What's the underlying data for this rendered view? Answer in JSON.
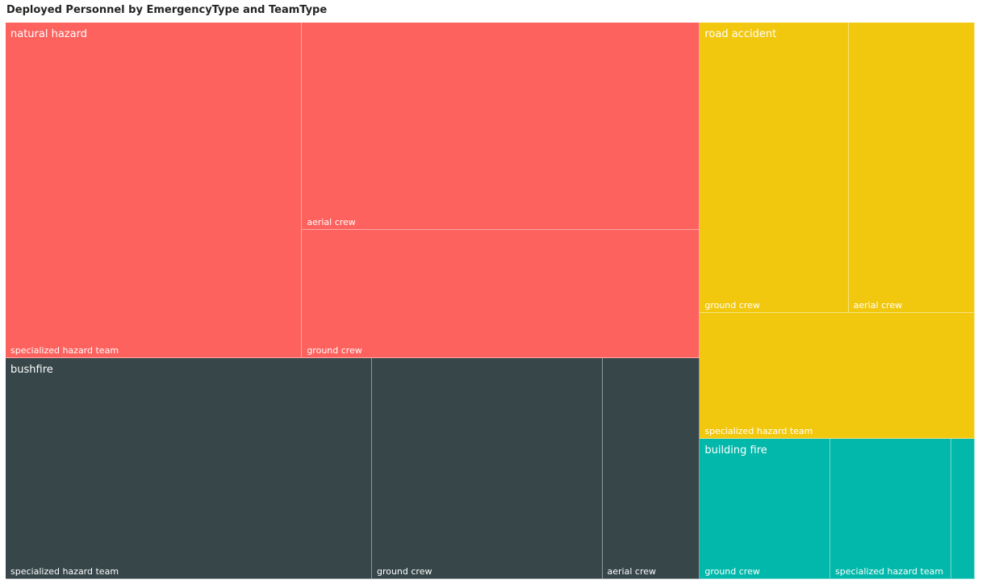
{
  "chart_data": {
    "type": "treemap",
    "title": "Deployed Personnel by EmergencyType and TeamType",
    "groups": [
      {
        "name": "natural hazard",
        "color": "#FD625E",
        "children": [
          {
            "name": "specialized hazard team",
            "value": 152
          },
          {
            "name": "aerial crew",
            "value": 126
          },
          {
            "name": "ground crew",
            "value": 78
          }
        ]
      },
      {
        "name": "bushfire",
        "color": "#374649",
        "children": [
          {
            "name": "specialized hazard team",
            "value": 124
          },
          {
            "name": "ground crew",
            "value": 78
          },
          {
            "name": "aerial crew",
            "value": 33
          }
        ]
      },
      {
        "name": "road accident",
        "color": "#F2C80F",
        "children": [
          {
            "name": "ground crew",
            "value": 66
          },
          {
            "name": "aerial crew",
            "value": 56
          },
          {
            "name": "specialized hazard team",
            "value": 53
          }
        ]
      },
      {
        "name": "building fire",
        "color": "#01B8AA",
        "children": [
          {
            "name": "ground crew",
            "value": 28
          },
          {
            "name": "specialized hazard team",
            "value": 26
          },
          {
            "name": "",
            "value": 5
          }
        ]
      }
    ]
  }
}
